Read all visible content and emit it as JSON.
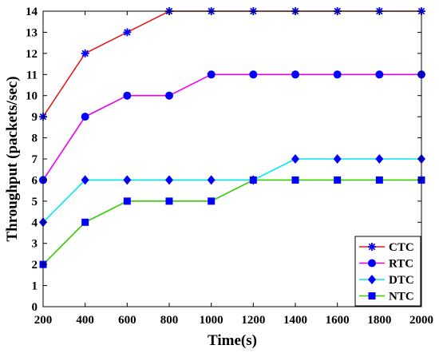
{
  "chart_data": {
    "type": "line",
    "title": "",
    "xlabel": "Time(s)",
    "ylabel": "Throughput (packets/sec)",
    "x": [
      200,
      400,
      600,
      800,
      1000,
      1200,
      1400,
      1600,
      1800,
      2000
    ],
    "xlim": [
      200,
      2000
    ],
    "ylim": [
      0,
      14
    ],
    "xticks": [
      200,
      400,
      600,
      800,
      1000,
      1200,
      1400,
      1600,
      1800,
      2000
    ],
    "yticks": [
      0,
      1,
      2,
      3,
      4,
      5,
      6,
      7,
      8,
      9,
      10,
      11,
      12,
      13,
      14
    ],
    "grid": false,
    "legend_position": "bottom-right",
    "series": [
      {
        "name": "CTC",
        "color": "#e41a1c",
        "marker": "asterisk",
        "values": [
          9,
          12,
          13,
          14,
          14,
          14,
          14,
          14,
          14,
          14
        ]
      },
      {
        "name": "RTC",
        "color": "#ee00ee",
        "marker": "circle",
        "values": [
          6,
          9,
          10,
          10,
          11,
          11,
          11,
          11,
          11,
          11
        ]
      },
      {
        "name": "DTC",
        "color": "#00e5ee",
        "marker": "diamond",
        "values": [
          4,
          6,
          6,
          6,
          6,
          6,
          7,
          7,
          7,
          7
        ]
      },
      {
        "name": "NTC",
        "color": "#33cc00",
        "marker": "square",
        "values": [
          2,
          4,
          5,
          5,
          5,
          6,
          6,
          6,
          6,
          6
        ]
      }
    ]
  },
  "marker_color": "#0000ff"
}
